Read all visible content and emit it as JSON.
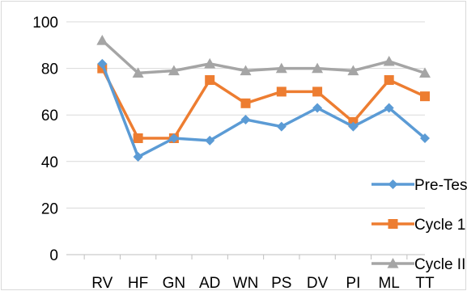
{
  "chart_data": {
    "type": "line",
    "categories": [
      "RV",
      "HF",
      "GN",
      "AD",
      "WN",
      "PS",
      "DV",
      "PI",
      "ML",
      "TT"
    ],
    "ylim": [
      0,
      100
    ],
    "yticks": [
      0,
      20,
      40,
      60,
      80,
      100
    ],
    "grid": "horizontal",
    "legend_position": "right",
    "series": [
      {
        "name": "Pre-Test",
        "color": "#5b9bd5",
        "marker": "diamond",
        "values": [
          82,
          42,
          50,
          49,
          58,
          55,
          63,
          55,
          63,
          50
        ]
      },
      {
        "name": "Cycle 1",
        "color": "#ed7d31",
        "marker": "square",
        "values": [
          80,
          50,
          50,
          75,
          65,
          70,
          70,
          57,
          75,
          68
        ]
      },
      {
        "name": "Cycle II",
        "color": "#a5a5a5",
        "marker": "triangle",
        "values": [
          92,
          78,
          79,
          82,
          79,
          80,
          80,
          79,
          83,
          78
        ]
      }
    ]
  }
}
